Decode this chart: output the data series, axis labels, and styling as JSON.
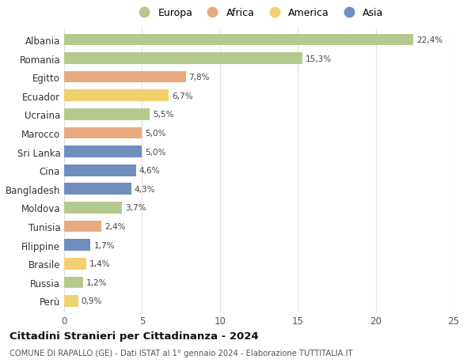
{
  "countries": [
    "Albania",
    "Romania",
    "Egitto",
    "Ecuador",
    "Ucraina",
    "Marocco",
    "Sri Lanka",
    "Cina",
    "Bangladesh",
    "Moldova",
    "Tunisia",
    "Filippine",
    "Brasile",
    "Russia",
    "Perù"
  ],
  "values": [
    22.4,
    15.3,
    7.8,
    6.7,
    5.5,
    5.0,
    5.0,
    4.6,
    4.3,
    3.7,
    2.4,
    1.7,
    1.4,
    1.2,
    0.9
  ],
  "labels": [
    "22,4%",
    "15,3%",
    "7,8%",
    "6,7%",
    "5,5%",
    "5,0%",
    "5,0%",
    "4,6%",
    "4,3%",
    "3,7%",
    "2,4%",
    "1,7%",
    "1,4%",
    "1,2%",
    "0,9%"
  ],
  "continents": [
    "Europa",
    "Europa",
    "Africa",
    "America",
    "Europa",
    "Africa",
    "Asia",
    "Asia",
    "Asia",
    "Europa",
    "Africa",
    "Asia",
    "America",
    "Europa",
    "America"
  ],
  "colors": {
    "Europa": "#b5c98e",
    "Africa": "#e8aa80",
    "America": "#f0d070",
    "Asia": "#6f8fbe"
  },
  "legend_order": [
    "Europa",
    "Africa",
    "America",
    "Asia"
  ],
  "title": "Cittadini Stranieri per Cittadinanza - 2024",
  "subtitle": "COMUNE DI RAPALLO (GE) - Dati ISTAT al 1° gennaio 2024 - Elaborazione TUTTITALIA.IT",
  "xlim": [
    0,
    25
  ],
  "xticks": [
    0,
    5,
    10,
    15,
    20,
    25
  ],
  "bg_color": "#ffffff",
  "grid_color": "#e0e0e0"
}
